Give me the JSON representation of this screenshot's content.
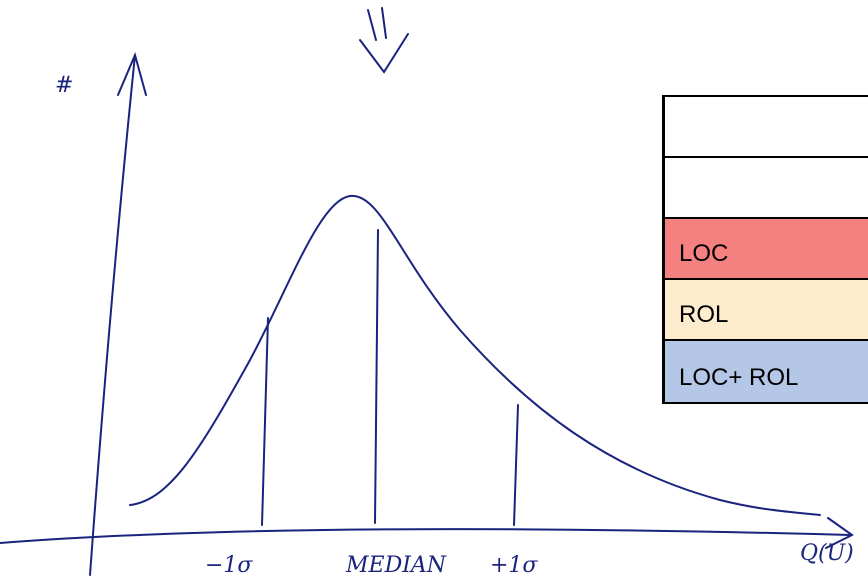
{
  "axes": {
    "y_label": "#",
    "x_label": "Q(U)"
  },
  "markers": [
    "−1σ",
    "MEDIAN",
    "+1σ"
  ],
  "table": {
    "rows": [
      "LOC",
      "ROL",
      "LOC+ ROL"
    ]
  }
}
